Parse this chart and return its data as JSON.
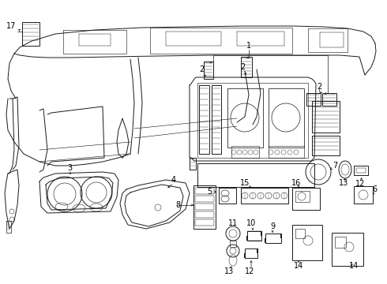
{
  "bg": "#ffffff",
  "lc": "#1a1a1a",
  "lw": 0.7,
  "fig_w": 4.9,
  "fig_h": 3.6,
  "dpi": 100,
  "font_size": 6.5,
  "arrow_lw": 0.5
}
